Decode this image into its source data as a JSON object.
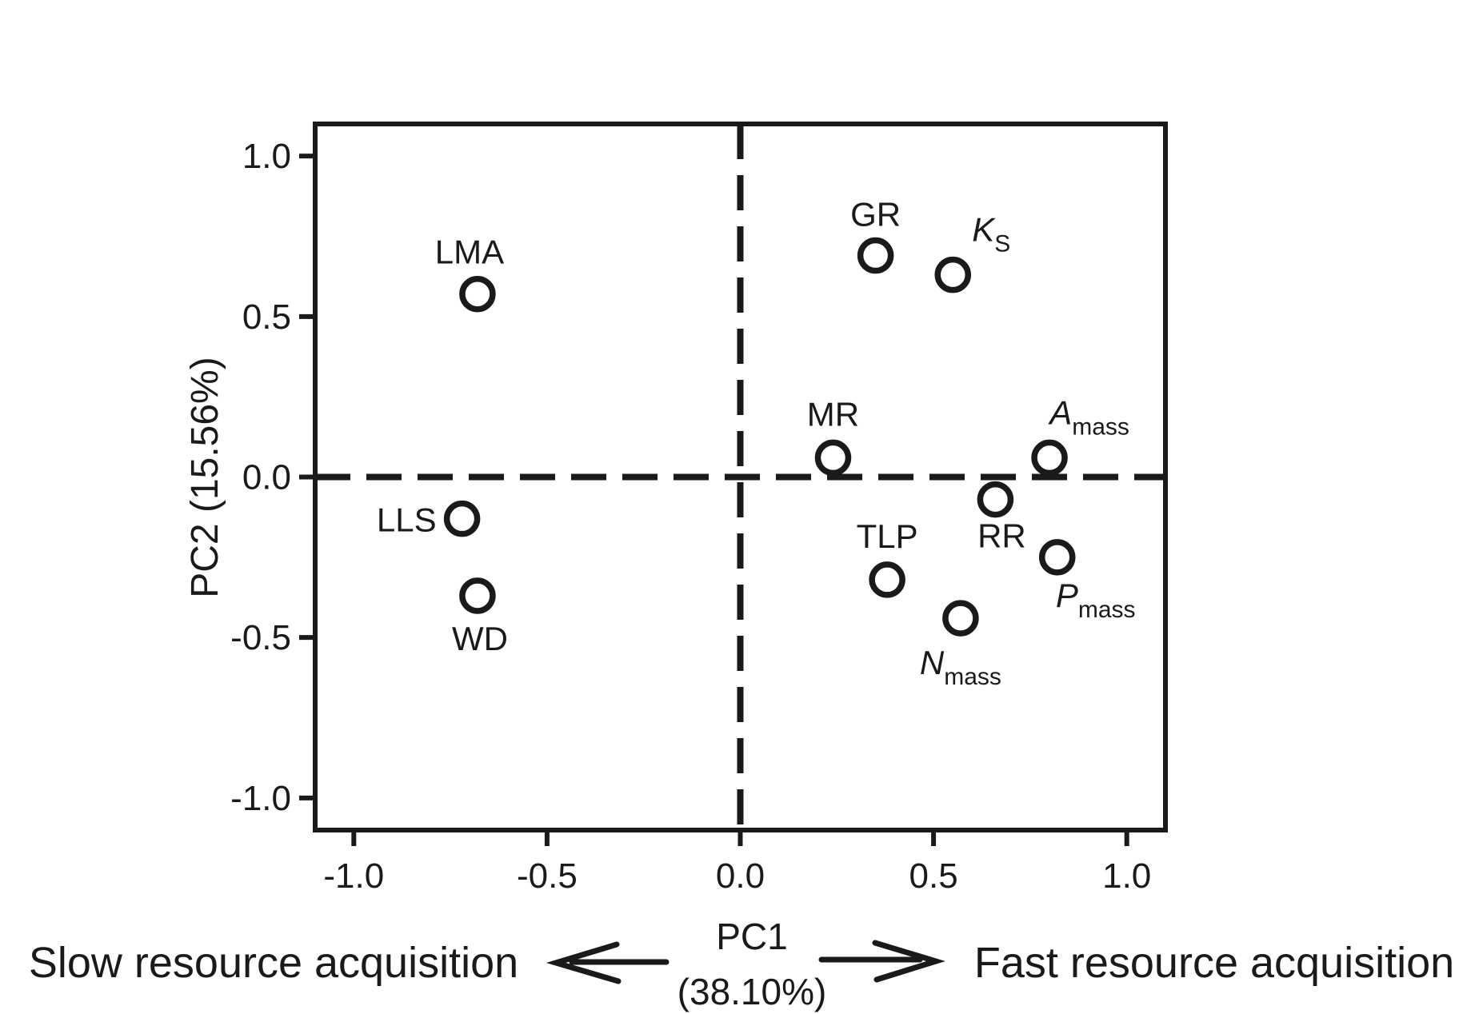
{
  "figure": {
    "background": "#ffffff",
    "ink_color": "#1a1a1a",
    "y_axis_title": "PC2 (15.56%)",
    "x_axis_title_line1": "PC1",
    "x_axis_title_line2": "(38.10%)",
    "left_annotation": "Slow resource acquisition",
    "right_annotation": "Fast resource acquisition"
  },
  "chart_data": {
    "type": "scatter",
    "title": "",
    "xlabel": "PC1 (38.10%)",
    "ylabel": "PC2 (15.56%)",
    "xlim": [
      -1.1,
      1.1
    ],
    "ylim": [
      -1.1,
      1.1
    ],
    "grid": false,
    "legend": "none",
    "x_ticks": [
      {
        "value": -1.0,
        "label": "-1.0"
      },
      {
        "value": -0.5,
        "label": "-0.5"
      },
      {
        "value": 0.0,
        "label": "0.0"
      },
      {
        "value": 0.5,
        "label": "0.5"
      },
      {
        "value": 1.0,
        "label": "1.0"
      }
    ],
    "y_ticks": [
      {
        "value": -1.0,
        "label": "-1.0"
      },
      {
        "value": -0.5,
        "label": "-0.5"
      },
      {
        "value": 0.0,
        "label": "0.0"
      },
      {
        "value": 0.5,
        "label": "0.5"
      },
      {
        "value": 1.0,
        "label": "1.0"
      }
    ],
    "reference_lines": [
      {
        "orientation": "vertical",
        "value": 0.0,
        "style": "dashed"
      },
      {
        "orientation": "horizontal",
        "value": 0.0,
        "style": "dashed"
      }
    ],
    "marker_style": {
      "shape": "open-circle",
      "fill": "#ffffff",
      "stroke": "#1a1a1a",
      "radius_px": 19,
      "stroke_width_px": 7.5
    },
    "series": [
      {
        "name": "trait loadings",
        "points": [
          {
            "name": "LMA",
            "label_main": "LMA",
            "label_sub": "",
            "italic": false,
            "pc1": -0.68,
            "pc2": 0.57,
            "label_anchor": "middle",
            "label_dx": -10,
            "label_dy": -38
          },
          {
            "name": "LLS",
            "label_main": "LLS",
            "label_sub": "",
            "italic": false,
            "pc1": -0.72,
            "pc2": -0.13,
            "label_anchor": "end",
            "label_dx": -32,
            "label_dy": 16
          },
          {
            "name": "WD",
            "label_main": "WD",
            "label_sub": "",
            "italic": false,
            "pc1": -0.68,
            "pc2": -0.37,
            "label_anchor": "middle",
            "label_dx": 3,
            "label_dy": 68
          },
          {
            "name": "GR",
            "label_main": "GR",
            "label_sub": "",
            "italic": false,
            "pc1": 0.35,
            "pc2": 0.69,
            "label_anchor": "middle",
            "label_dx": 0,
            "label_dy": -37
          },
          {
            "name": "KS",
            "label_main": "K",
            "label_sub": "S",
            "italic": true,
            "pc1": 0.55,
            "pc2": 0.63,
            "label_anchor": "middle",
            "label_dx": 48,
            "label_dy": -42
          },
          {
            "name": "MR",
            "label_main": "MR",
            "label_sub": "",
            "italic": false,
            "pc1": 0.24,
            "pc2": 0.06,
            "label_anchor": "middle",
            "label_dx": 0,
            "label_dy": -40
          },
          {
            "name": "Amass",
            "label_main": "A",
            "label_sub": "mass",
            "italic": true,
            "pc1": 0.8,
            "pc2": 0.06,
            "label_anchor": "middle",
            "label_dx": 50,
            "label_dy": -42
          },
          {
            "name": "RR",
            "label_main": "RR",
            "label_sub": "",
            "italic": false,
            "pc1": 0.66,
            "pc2": -0.07,
            "label_anchor": "middle",
            "label_dx": 8,
            "label_dy": 60
          },
          {
            "name": "TLP",
            "label_main": "TLP",
            "label_sub": "",
            "italic": false,
            "pc1": 0.38,
            "pc2": -0.32,
            "label_anchor": "middle",
            "label_dx": 0,
            "label_dy": -40
          },
          {
            "name": "Pmass",
            "label_main": "P",
            "label_sub": "mass",
            "italic": true,
            "pc1": 0.82,
            "pc2": -0.25,
            "label_anchor": "middle",
            "label_dx": 48,
            "label_dy": 62
          },
          {
            "name": "Nmass",
            "label_main": "N",
            "label_sub": "mass",
            "italic": true,
            "pc1": 0.57,
            "pc2": -0.44,
            "label_anchor": "middle",
            "label_dx": 0,
            "label_dy": 70
          }
        ]
      }
    ]
  }
}
